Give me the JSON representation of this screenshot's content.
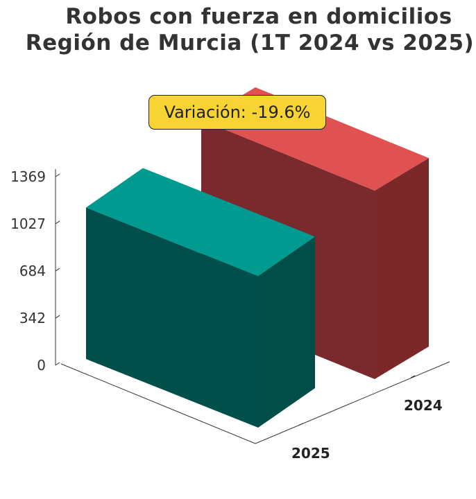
{
  "chart_data": {
    "type": "bar",
    "title_lines": [
      "Robos con fuerza en domicilios",
      "Región de Murcia (1T 2024 vs 2025)"
    ],
    "categories": [
      "2024",
      "2025"
    ],
    "values": [
      1369,
      1100
    ],
    "colors": {
      "2024": {
        "front": "#7a2a2c",
        "top": "#e05252",
        "side": "#7c2829"
      },
      "2025": {
        "front": "#004f4a",
        "top": "#009a90",
        "side": "#014d48"
      }
    },
    "y_ticks": [
      "0",
      "342",
      "684",
      "1027",
      "1369"
    ],
    "ylim": [
      0,
      1369
    ],
    "annotation": "Variación: -19.6%",
    "annotation_color": "#f7d334"
  }
}
